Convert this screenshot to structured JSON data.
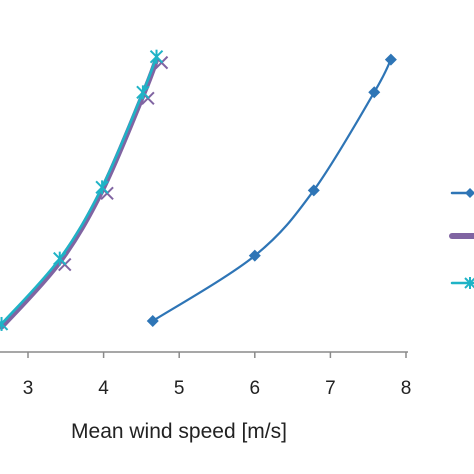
{
  "chart_data": {
    "type": "line",
    "xlabel": "Mean wind speed [m/s]",
    "ylabel": "",
    "xlim": [
      2.65,
      8.0
    ],
    "x_ticks": [
      "3",
      "4",
      "5",
      "6",
      "7",
      "8"
    ],
    "grid": false,
    "legend_position": "right",
    "series": [
      {
        "color": "#2E75B6",
        "marker": "diamond",
        "points": [
          [
            4.65,
            0.0
          ],
          [
            6.0,
            0.22
          ],
          [
            6.78,
            0.44
          ],
          [
            7.58,
            0.77
          ],
          [
            7.8,
            0.88
          ]
        ]
      },
      {
        "color": "#8064A2",
        "marker": "none",
        "points": [
          [
            2.65,
            -0.02
          ],
          [
            3.42,
            0.2
          ],
          [
            3.98,
            0.44
          ],
          [
            4.52,
            0.76
          ],
          [
            4.7,
            0.88
          ]
        ]
      },
      {
        "color": "#1FB3C6",
        "marker": "star",
        "points": [
          [
            2.65,
            -0.01
          ],
          [
            3.42,
            0.21
          ],
          [
            3.98,
            0.45
          ],
          [
            4.52,
            0.77
          ],
          [
            4.7,
            0.89
          ]
        ]
      }
    ]
  }
}
